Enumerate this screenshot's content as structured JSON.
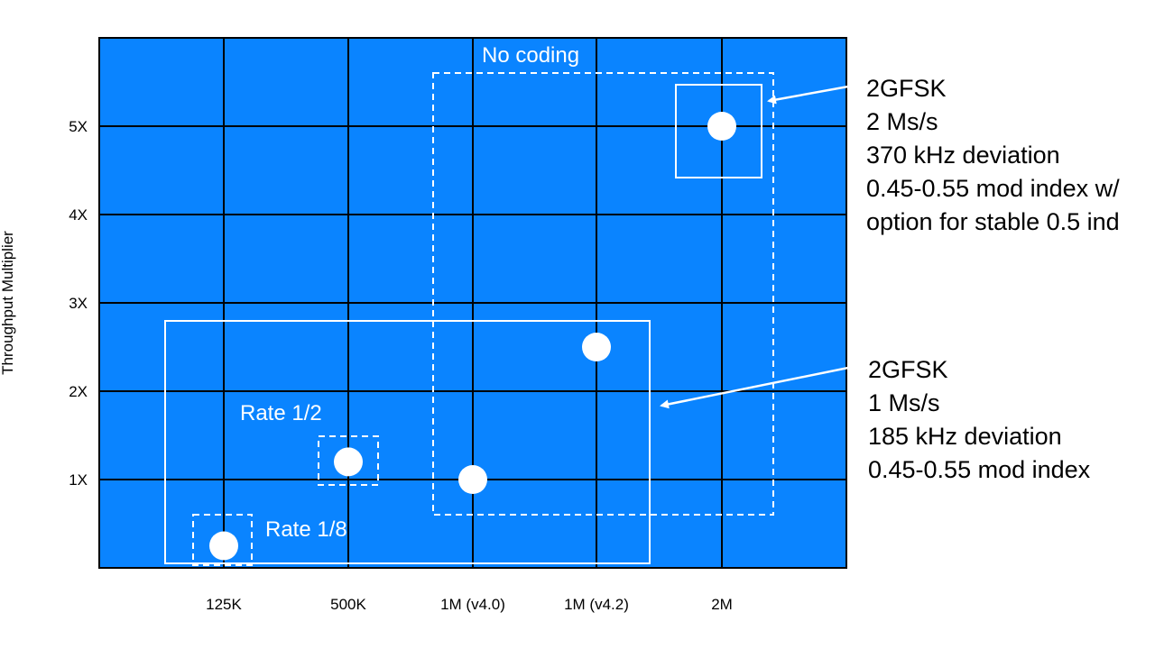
{
  "chart_data": {
    "type": "scatter",
    "title": "",
    "xlabel": "",
    "ylabel": "Throughput Multiplier",
    "categories": [
      "125K",
      "500K",
      "1M (v4.0)",
      "1M (v4.2)",
      "2M"
    ],
    "yticks": [
      "1X",
      "2X",
      "3X",
      "4X",
      "5X"
    ],
    "ylim": [
      0,
      6
    ],
    "grid": true,
    "background_color": "#0a84ff",
    "points": [
      {
        "x": "125K",
        "y": 0.25
      },
      {
        "x": "500K",
        "y": 1.2
      },
      {
        "x": "1M (v4.0)",
        "y": 1.0
      },
      {
        "x": "1M (v4.2)",
        "y": 2.5
      },
      {
        "x": "2M",
        "y": 5.0
      }
    ],
    "annotations": [
      {
        "text": "No coding"
      },
      {
        "text": "Rate 1/2"
      },
      {
        "text": "Rate 1/8"
      }
    ]
  },
  "callouts": [
    {
      "lines": [
        "2GFSK",
        "2 Ms/s",
        "370 kHz deviation",
        "0.45-0.55 mod index w/",
        "option for stable 0.5 ind"
      ]
    },
    {
      "lines": [
        "2GFSK",
        "1 Ms/s",
        "185 kHz deviation",
        "0.45-0.55 mod index"
      ]
    }
  ]
}
